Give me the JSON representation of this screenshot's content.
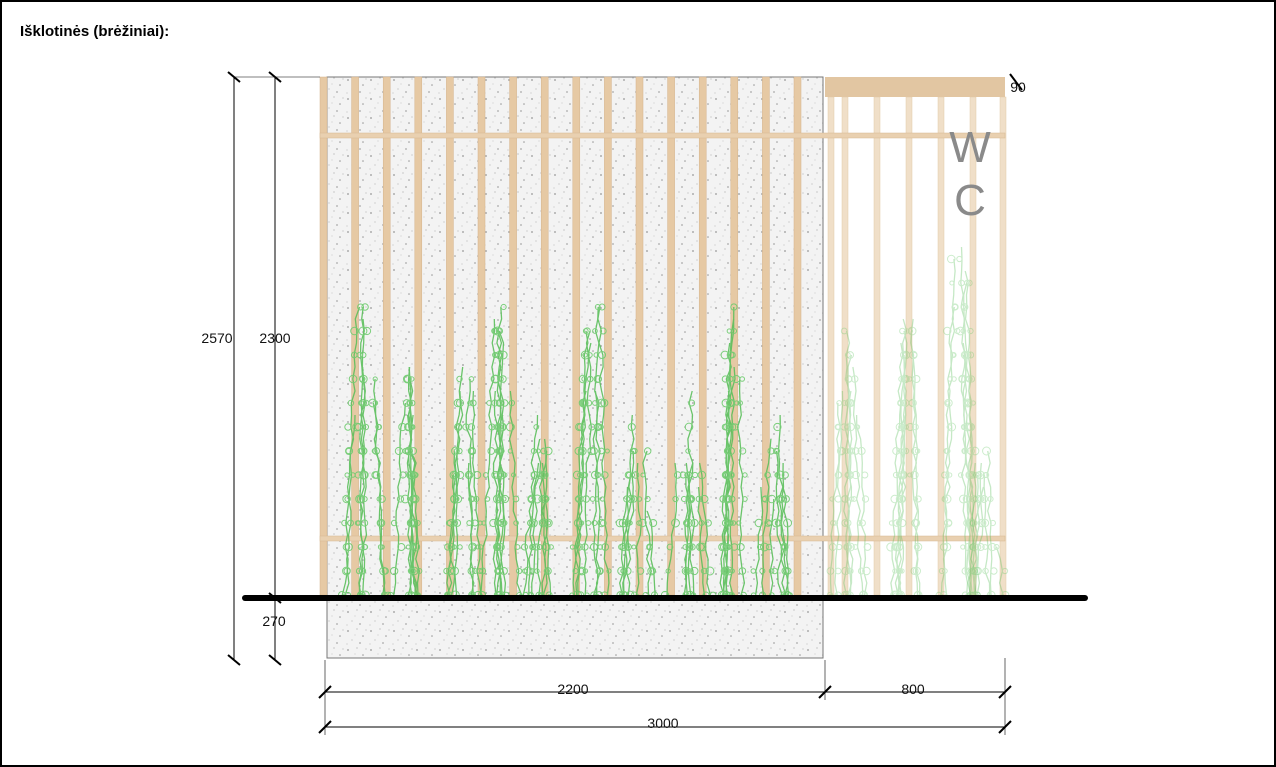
{
  "header": {
    "title": "Išklotinės (brėžiniai):"
  },
  "drawing": {
    "dimensions": {
      "total_height": "2570",
      "panel_height": "2300",
      "foundation_depth": "270",
      "beam_height": "90",
      "panel_width": "2200",
      "wc_width": "800",
      "total_width": "3000"
    },
    "wc_label": {
      "line1": "W",
      "line2": "C"
    }
  }
}
